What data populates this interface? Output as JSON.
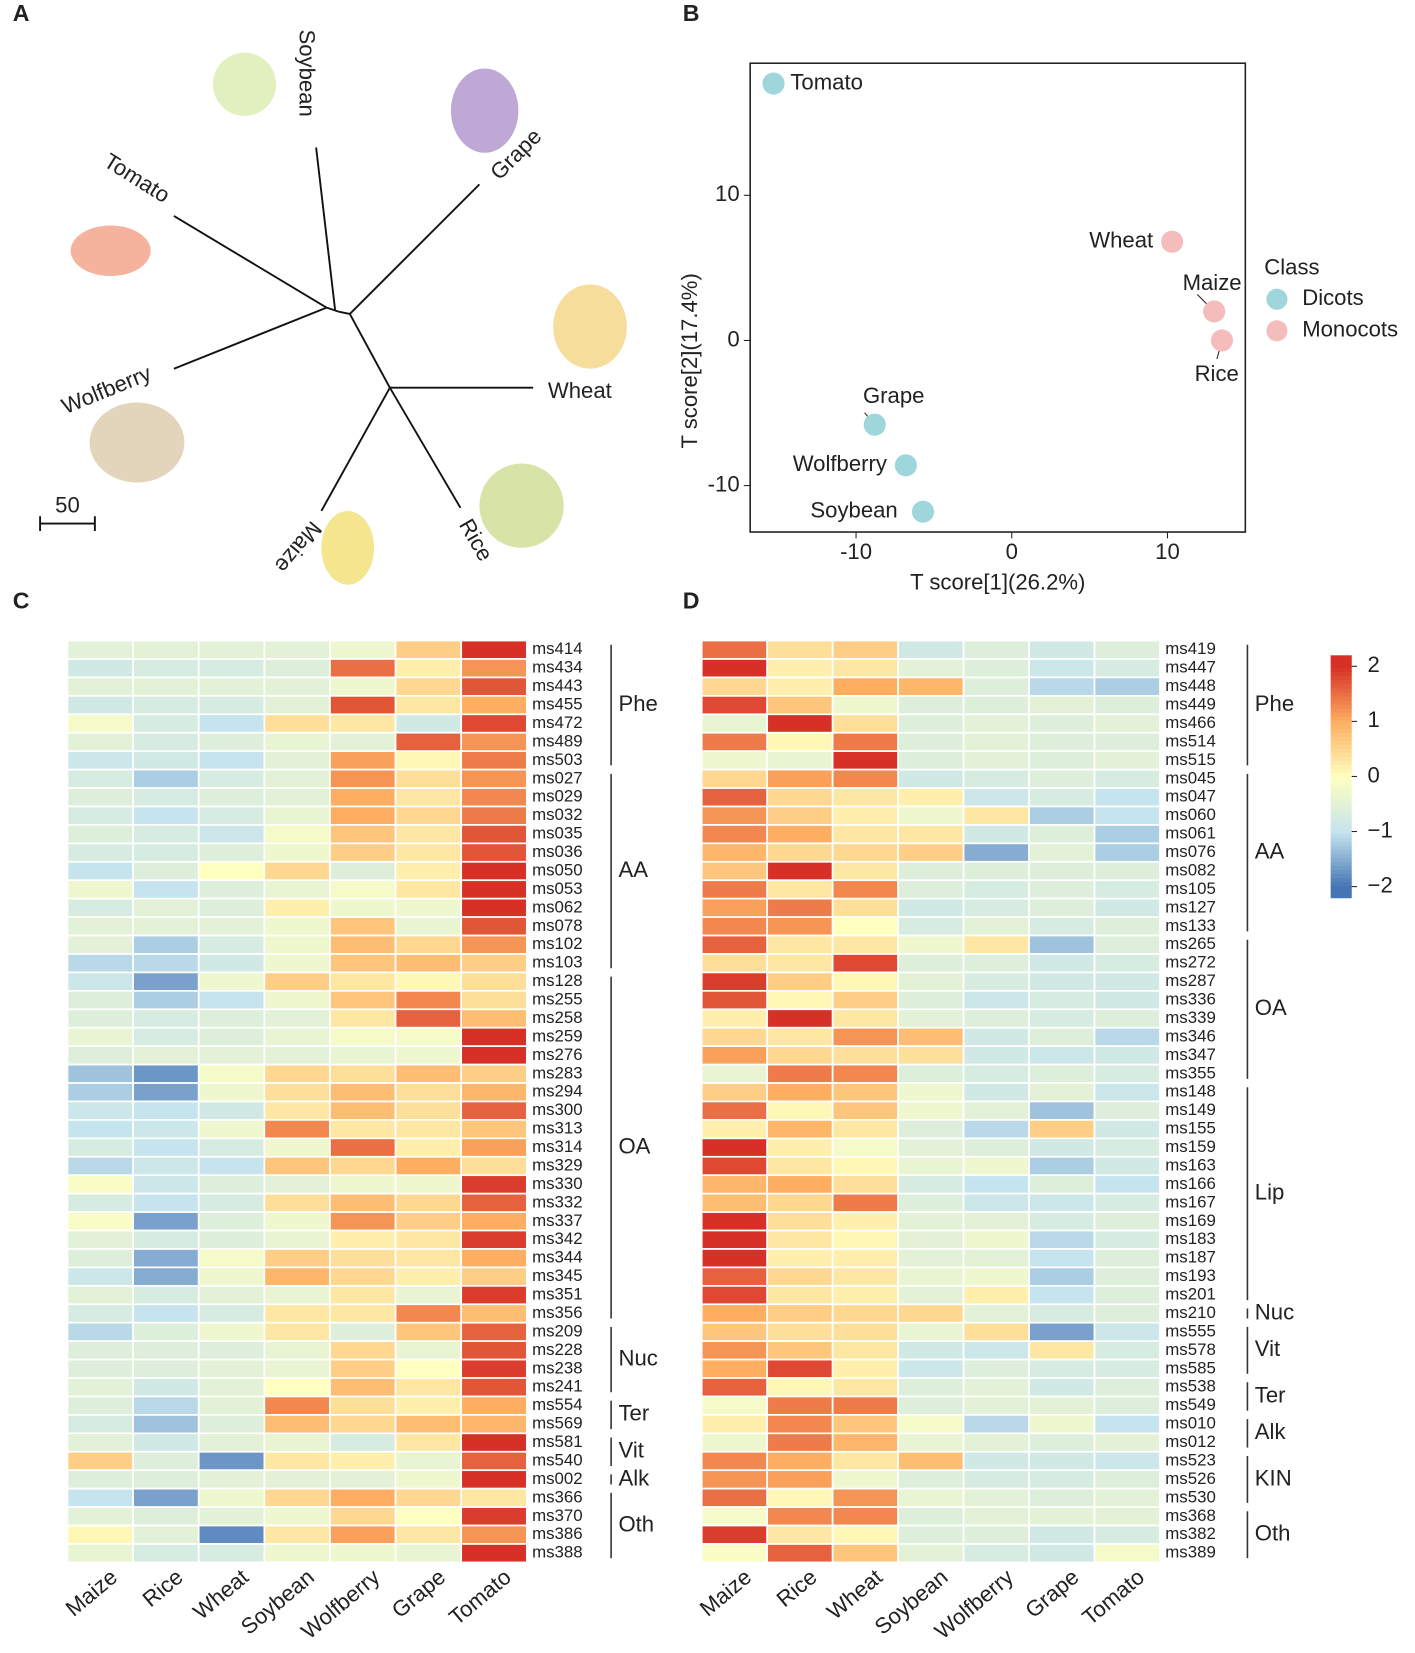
{
  "chart_data": [
    {
      "panel": "A",
      "type": "tree",
      "leaves": [
        "Soybean",
        "Grape",
        "Tomato",
        "Wolfberry",
        "Wheat",
        "Maize",
        "Rice"
      ],
      "scale_bar": 50
    },
    {
      "panel": "B",
      "type": "scatter",
      "xlabel": "T score[1](26.2%)",
      "ylabel": "T score[2](17.4%)",
      "xlim": [
        -16.8,
        15
      ],
      "ylim": [
        -13.2,
        19.1
      ],
      "xticks": [
        -10,
        0,
        10
      ],
      "yticks": [
        -10,
        0,
        10
      ],
      "legend_title": "Class",
      "legend": "right",
      "series": [
        {
          "name": "Dicots",
          "color": "#9ed6dc",
          "labels": [
            "Tomato",
            "Grape",
            "Wolfberry",
            "Soybean"
          ],
          "x": [
            -15.3,
            -8.8,
            -6.8,
            -5.7
          ],
          "values": [
            17.7,
            -5.8,
            -8.6,
            -11.8
          ]
        },
        {
          "name": "Monocots",
          "color": "#f5bcbc",
          "labels": [
            "Wheat",
            "Maize",
            "Rice"
          ],
          "x": [
            10.3,
            13.0,
            13.5
          ],
          "values": [
            6.8,
            2.0,
            0.0
          ]
        }
      ]
    },
    {
      "panel": "C",
      "type": "heatmap",
      "columns": [
        "Maize",
        "Rice",
        "Wheat",
        "Soybean",
        "Wolfberry",
        "Grape",
        "Tomato"
      ],
      "rows": [
        "ms414",
        "ms434",
        "ms443",
        "ms455",
        "ms472",
        "ms489",
        "ms503",
        "ms027",
        "ms029",
        "ms032",
        "ms035",
        "ms036",
        "ms050",
        "ms053",
        "ms062",
        "ms078",
        "ms102",
        "ms103",
        "ms128",
        "ms255",
        "ms258",
        "ms259",
        "ms276",
        "ms283",
        "ms294",
        "ms300",
        "ms313",
        "ms314",
        "ms329",
        "ms330",
        "ms332",
        "ms337",
        "ms342",
        "ms344",
        "ms345",
        "ms351",
        "ms356",
        "ms209",
        "ms228",
        "ms238",
        "ms241",
        "ms554",
        "ms569",
        "ms581",
        "ms540",
        "ms002",
        "ms366",
        "ms370",
        "ms386",
        "ms388"
      ],
      "groups": [
        {
          "name": "Phe",
          "rows": [
            0,
            6
          ]
        },
        {
          "name": "AA",
          "rows": [
            7,
            17
          ]
        },
        {
          "name": "OA",
          "rows": [
            18,
            36
          ]
        },
        {
          "name": "Nuc",
          "rows": [
            37,
            40
          ]
        },
        {
          "name": "Ter",
          "rows": [
            41,
            42
          ]
        },
        {
          "name": "Vit",
          "rows": [
            43,
            44
          ]
        },
        {
          "name": "Alk",
          "rows": [
            45,
            45
          ]
        },
        {
          "name": "Oth",
          "rows": [
            46,
            49
          ]
        }
      ],
      "values": [
        [
          -0.5,
          -0.5,
          -0.5,
          -0.5,
          -0.3,
          0.6,
          2
        ],
        [
          -0.8,
          -0.7,
          -0.7,
          -0.6,
          1.5,
          0.2,
          1.2
        ],
        [
          -0.5,
          -0.5,
          -0.5,
          -0.5,
          -0.3,
          0.5,
          1.7
        ],
        [
          -0.8,
          -0.7,
          -0.7,
          -0.5,
          1.7,
          0.3,
          1.0
        ],
        [
          -0.2,
          -0.7,
          -1.0,
          0.4,
          0.3,
          -0.8,
          1.8
        ],
        [
          -0.5,
          -0.7,
          -0.6,
          -0.4,
          -0.5,
          1.6,
          1.2
        ],
        [
          -0.9,
          -0.8,
          -1.0,
          -0.5,
          1.1,
          0.1,
          1.4
        ],
        [
          -0.7,
          -1.2,
          -0.7,
          -0.5,
          1.2,
          0.4,
          1.2
        ],
        [
          -0.6,
          -0.7,
          -0.6,
          -0.5,
          1.0,
          0.3,
          1.3
        ],
        [
          -0.7,
          -1.0,
          -0.7,
          -0.4,
          1.0,
          0.5,
          1.4
        ],
        [
          -0.6,
          -0.7,
          -0.9,
          -0.2,
          0.7,
          0.3,
          1.7
        ],
        [
          -0.7,
          -0.7,
          -0.6,
          -0.3,
          0.6,
          0.3,
          1.7
        ],
        [
          -1.0,
          -0.6,
          0.0,
          0.5,
          -0.6,
          0.2,
          2.0
        ],
        [
          -0.3,
          -1.0,
          -0.6,
          -0.4,
          -0.2,
          0.3,
          2.0
        ],
        [
          -0.7,
          -0.5,
          -0.6,
          0.2,
          -0.3,
          -0.3,
          2.0
        ],
        [
          -0.5,
          -0.5,
          -0.5,
          -0.3,
          0.7,
          -0.4,
          1.7
        ],
        [
          -0.5,
          -1.2,
          -0.7,
          -0.3,
          0.8,
          0.5,
          1.2
        ],
        [
          -1.1,
          -1.1,
          -0.8,
          -0.3,
          0.7,
          0.8,
          0.6
        ],
        [
          -0.9,
          -1.6,
          -0.3,
          0.6,
          0.3,
          0.1,
          0.4
        ],
        [
          -0.6,
          -1.2,
          -1.0,
          -0.3,
          0.7,
          1.3,
          0.4
        ],
        [
          -0.6,
          -0.7,
          -0.6,
          -0.5,
          0.3,
          1.6,
          0.8
        ],
        [
          -0.4,
          -0.7,
          -0.6,
          -0.4,
          -0.2,
          -0.2,
          2.0
        ],
        [
          -0.6,
          -0.5,
          -0.5,
          -0.5,
          -0.4,
          -0.3,
          2.0
        ],
        [
          -1.3,
          -1.7,
          -0.2,
          0.5,
          0.4,
          0.8,
          0.6
        ],
        [
          -1.2,
          -1.6,
          -0.3,
          0.4,
          0.8,
          0.4,
          0.9
        ],
        [
          -0.9,
          -1.0,
          -0.8,
          0.3,
          0.8,
          0.4,
          1.6
        ],
        [
          -1.0,
          -0.9,
          -0.3,
          1.3,
          0.3,
          0.3,
          0.7
        ],
        [
          -0.7,
          -1.0,
          -0.7,
          -0.3,
          1.5,
          0.2,
          1.1
        ],
        [
          -1.1,
          -0.9,
          -1.0,
          0.7,
          0.5,
          1.0,
          0.4
        ],
        [
          -0.1,
          -0.9,
          -0.6,
          -0.5,
          -0.3,
          -0.3,
          1.9
        ],
        [
          -0.7,
          -1.0,
          -0.7,
          0.4,
          0.8,
          0.5,
          1.6
        ],
        [
          -0.1,
          -1.6,
          -0.6,
          -0.3,
          1.2,
          0.6,
          1.0
        ],
        [
          -0.5,
          -0.7,
          -0.6,
          -0.4,
          0.2,
          0.3,
          1.9
        ],
        [
          -0.6,
          -1.5,
          -0.2,
          0.6,
          0.4,
          0.3,
          1.0
        ],
        [
          -0.9,
          -1.5,
          -0.3,
          0.9,
          0.5,
          0.2,
          0.6
        ],
        [
          -0.5,
          -0.7,
          -0.5,
          -0.4,
          0.3,
          -0.4,
          1.9
        ],
        [
          -0.7,
          -1.0,
          -0.7,
          0.3,
          0.3,
          1.3,
          0.8
        ],
        [
          -1.1,
          -0.6,
          -0.3,
          0.3,
          -0.6,
          0.7,
          1.6
        ],
        [
          -0.6,
          -0.6,
          -0.6,
          -0.4,
          0.5,
          -0.4,
          1.7
        ],
        [
          -0.6,
          -0.6,
          -0.5,
          -0.4,
          0.6,
          0.0,
          1.9
        ],
        [
          -0.5,
          -0.8,
          -0.5,
          0.0,
          0.8,
          0.3,
          1.7
        ],
        [
          -0.6,
          -1.1,
          -0.5,
          1.3,
          0.4,
          0.2,
          1.0
        ],
        [
          -0.7,
          -1.3,
          -0.6,
          0.8,
          0.5,
          0.8,
          0.9
        ],
        [
          -0.5,
          -0.8,
          -0.5,
          -0.4,
          -0.7,
          0.3,
          2.0
        ],
        [
          0.6,
          -0.6,
          -1.7,
          0.3,
          0.2,
          -0.4,
          1.6
        ],
        [
          -0.6,
          -0.6,
          -0.5,
          -0.5,
          -0.5,
          -0.3,
          2.0
        ],
        [
          -1.0,
          -1.6,
          -0.3,
          0.5,
          1.0,
          0.5,
          0.3
        ],
        [
          -0.5,
          -0.6,
          -0.5,
          -0.3,
          0.5,
          0.0,
          1.9
        ],
        [
          0.1,
          -0.5,
          -1.8,
          0.3,
          1.1,
          0.3,
          1.2
        ],
        [
          -0.4,
          -0.7,
          -0.7,
          -0.3,
          -0.3,
          -0.4,
          2.0
        ]
      ]
    },
    {
      "panel": "D",
      "type": "heatmap",
      "columns": [
        "Maize",
        "Rice",
        "Wheat",
        "Soybean",
        "Wolfberry",
        "Grape",
        "Tomato"
      ],
      "rows": [
        "ms419",
        "ms447",
        "ms448",
        "ms449",
        "ms466",
        "ms514",
        "ms515",
        "ms045",
        "ms047",
        "ms060",
        "ms061",
        "ms076",
        "ms082",
        "ms105",
        "ms127",
        "ms133",
        "ms265",
        "ms272",
        "ms287",
        "ms336",
        "ms339",
        "ms346",
        "ms347",
        "ms355",
        "ms148",
        "ms149",
        "ms155",
        "ms159",
        "ms163",
        "ms166",
        "ms167",
        "ms169",
        "ms183",
        "ms187",
        "ms193",
        "ms201",
        "ms210",
        "ms555",
        "ms578",
        "ms585",
        "ms538",
        "ms549",
        "ms010",
        "ms012",
        "ms523",
        "ms526",
        "ms530",
        "ms368",
        "ms382",
        "ms389"
      ],
      "groups": [
        {
          "name": "Phe",
          "rows": [
            0,
            6
          ]
        },
        {
          "name": "AA",
          "rows": [
            7,
            15
          ]
        },
        {
          "name": "OA",
          "rows": [
            16,
            23
          ]
        },
        {
          "name": "Lip",
          "rows": [
            24,
            35
          ]
        },
        {
          "name": "Nuc",
          "rows": [
            36,
            36
          ]
        },
        {
          "name": "Vit",
          "rows": [
            37,
            39
          ]
        },
        {
          "name": "Ter",
          "rows": [
            40,
            41
          ]
        },
        {
          "name": "Alk",
          "rows": [
            42,
            43
          ]
        },
        {
          "name": "KIN",
          "rows": [
            44,
            46
          ]
        },
        {
          "name": "Oth",
          "rows": [
            47,
            49
          ]
        }
      ],
      "values": [
        [
          1.5,
          0.4,
          0.6,
          -0.8,
          -0.6,
          -0.8,
          -0.6
        ],
        [
          2.0,
          0.2,
          0.3,
          -0.5,
          -0.6,
          -0.9,
          -0.7
        ],
        [
          0.5,
          0.2,
          1.0,
          0.9,
          -0.6,
          -1.1,
          -1.2
        ],
        [
          1.8,
          0.7,
          -0.3,
          -0.6,
          -0.6,
          -0.5,
          -0.6
        ],
        [
          -0.4,
          2.1,
          0.4,
          -0.6,
          -0.5,
          -0.6,
          -0.5
        ],
        [
          1.4,
          0.1,
          1.4,
          -0.6,
          -0.5,
          -0.6,
          -0.6
        ],
        [
          -0.3,
          -0.4,
          2.0,
          -0.6,
          -0.5,
          -0.6,
          -0.5
        ],
        [
          0.5,
          1.1,
          1.3,
          -0.8,
          -0.7,
          -0.6,
          -0.7
        ],
        [
          1.6,
          0.5,
          0.3,
          0.2,
          -0.9,
          -0.7,
          -1.0
        ],
        [
          1.2,
          0.6,
          0.2,
          -0.3,
          0.3,
          -1.2,
          -1.0
        ],
        [
          1.3,
          1.0,
          0.3,
          0.3,
          -0.8,
          -0.6,
          -1.2
        ],
        [
          0.9,
          0.5,
          0.5,
          0.6,
          -1.5,
          -0.5,
          -1.2
        ],
        [
          0.7,
          2.0,
          0.3,
          -0.6,
          -0.6,
          -0.6,
          -0.6
        ],
        [
          1.4,
          0.3,
          1.3,
          -0.6,
          -0.7,
          -0.6,
          -0.7
        ],
        [
          1.1,
          1.4,
          0.4,
          -0.8,
          -0.7,
          -0.6,
          -0.8
        ],
        [
          1.3,
          1.2,
          0.0,
          -0.7,
          -0.5,
          -0.7,
          -0.6
        ],
        [
          1.6,
          0.3,
          0.3,
          -0.3,
          0.3,
          -1.3,
          -0.6
        ],
        [
          0.4,
          0.3,
          1.8,
          -0.6,
          -0.6,
          -0.8,
          -0.7
        ],
        [
          1.9,
          0.6,
          0.1,
          -0.5,
          -0.7,
          -0.8,
          -0.8
        ],
        [
          1.7,
          0.1,
          0.6,
          -0.6,
          -0.9,
          -0.7,
          -0.8
        ],
        [
          0.2,
          2.1,
          0.3,
          -0.5,
          -0.6,
          -0.7,
          -0.6
        ],
        [
          0.5,
          0.3,
          1.2,
          0.8,
          -0.8,
          -0.6,
          -1.1
        ],
        [
          1.1,
          0.5,
          0.4,
          0.4,
          -0.8,
          -0.9,
          -0.8
        ],
        [
          -0.4,
          1.4,
          1.3,
          -0.6,
          -0.7,
          -0.6,
          -0.7
        ],
        [
          0.6,
          1.0,
          0.7,
          -0.3,
          -0.8,
          -0.5,
          -0.9
        ],
        [
          1.5,
          0.1,
          0.7,
          -0.3,
          -0.5,
          -1.3,
          -0.6
        ],
        [
          0.2,
          0.9,
          0.3,
          -0.6,
          -1.1,
          0.6,
          -0.8
        ],
        [
          2.0,
          0.2,
          -0.2,
          -0.5,
          -0.6,
          -0.8,
          -0.7
        ],
        [
          1.8,
          0.3,
          0.1,
          -0.4,
          -0.3,
          -1.2,
          -0.8
        ],
        [
          0.9,
          1.0,
          0.4,
          -0.7,
          -1.0,
          -0.6,
          -1.0
        ],
        [
          0.8,
          0.5,
          1.4,
          -0.6,
          -0.9,
          -0.9,
          -0.7
        ],
        [
          2.0,
          0.4,
          0.2,
          -0.5,
          -0.5,
          -0.7,
          -0.6
        ],
        [
          2.0,
          0.3,
          0.1,
          -0.5,
          -0.3,
          -1.1,
          -0.7
        ],
        [
          2.1,
          0.2,
          0.2,
          -0.5,
          -0.5,
          -1.0,
          -0.6
        ],
        [
          1.6,
          0.5,
          0.3,
          -0.4,
          -0.3,
          -1.2,
          -0.6
        ],
        [
          1.8,
          0.3,
          0.2,
          -0.5,
          0.2,
          -1.0,
          -0.6
        ],
        [
          1.0,
          0.6,
          0.5,
          0.5,
          -0.5,
          -0.7,
          -0.6
        ],
        [
          0.7,
          0.4,
          0.4,
          -0.4,
          0.4,
          -1.6,
          -0.9
        ],
        [
          1.2,
          0.7,
          0.3,
          -0.8,
          -0.9,
          0.3,
          -0.7
        ],
        [
          1.0,
          1.8,
          0.2,
          -0.9,
          -0.6,
          -0.7,
          -0.7
        ],
        [
          1.6,
          0.1,
          0.3,
          -0.6,
          -0.5,
          -0.8,
          -0.6
        ],
        [
          -0.2,
          1.4,
          1.4,
          -0.6,
          -0.5,
          -0.5,
          -0.6
        ],
        [
          0.2,
          1.3,
          0.7,
          -0.2,
          -1.1,
          -0.3,
          -1.0
        ],
        [
          -0.3,
          1.4,
          0.9,
          -0.4,
          -0.5,
          -0.6,
          -0.5
        ],
        [
          1.3,
          1.0,
          0.3,
          0.8,
          -0.8,
          -0.8,
          -0.9
        ],
        [
          1.2,
          1.1,
          -0.3,
          -0.6,
          -0.7,
          -0.7,
          -0.6
        ],
        [
          1.5,
          0.1,
          1.2,
          -0.4,
          -0.5,
          -0.6,
          -0.5
        ],
        [
          -0.2,
          1.3,
          1.3,
          -0.6,
          -0.5,
          -0.5,
          -0.5
        ],
        [
          1.9,
          0.3,
          0.1,
          -0.6,
          -0.6,
          -0.8,
          -0.7
        ],
        [
          -0.1,
          1.6,
          0.7,
          -0.5,
          -0.7,
          -0.8,
          -0.2
        ]
      ],
      "colorbar": {
        "lim": [
          -2.2,
          2.2
        ],
        "ticks": [
          2,
          1,
          0,
          {
            "value": -1,
            "label": "−1"
          },
          {
            "value": -2,
            "label": "−2"
          }
        ],
        "colors": [
          "#d73027",
          "#fdae61",
          "#ffffbf",
          "#c6e4ee",
          "#4575b4"
        ]
      }
    }
  ]
}
